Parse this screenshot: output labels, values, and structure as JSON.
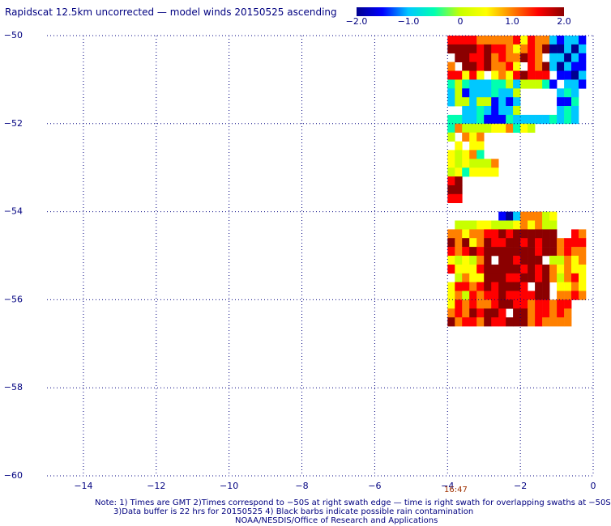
{
  "title": "Rapidscat 12.5km uncorrected — model winds 20150525 ascending",
  "colorbar": {
    "ticks": [
      "−2.0",
      "−1.0",
      "0",
      "1.0",
      "2.0"
    ],
    "tick_values": [
      -2.0,
      -1.0,
      0,
      1.0,
      2.0
    ],
    "range": [
      -2.0,
      2.0
    ],
    "colors": [
      "#00008f",
      "#0000ff",
      "#00c8ff",
      "#00ffb0",
      "#c8ff00",
      "#ffff00",
      "#ff8000",
      "#ff0000",
      "#8b0000"
    ]
  },
  "time_label": "16:47",
  "notes": {
    "line1": "Note: 1) Times are GMT 2)Times correspond to −50S at right swath edge — time is right swath for overlapping swaths at −50S",
    "line2": "3)Data buffer is 22 hrs for 20150525 4) Black barbs indicate possible rain contamination",
    "credit": "NOAA/NESDIS/Office of Research and Applications"
  },
  "chart_data": {
    "type": "heatmap",
    "title": "Rapidscat 12.5km uncorrected — model winds 20150525 ascending",
    "xlabel": "",
    "ylabel": "",
    "xlim": [
      -15,
      0
    ],
    "ylim": [
      -60,
      -50
    ],
    "x_ticks": [
      -14,
      -12,
      -10,
      -8,
      -6,
      -4,
      -2,
      0
    ],
    "x_tick_labels": [
      "−14",
      "−12",
      "−10",
      "−8",
      "−6",
      "−4",
      "−2",
      "0"
    ],
    "y_ticks": [
      -50,
      -52,
      -54,
      -56,
      -58,
      -60
    ],
    "y_tick_labels": [
      "−50",
      "−52",
      "−54",
      "−56",
      "−58",
      "−60"
    ],
    "grid": true,
    "grid_style": "dotted",
    "value_range": [
      -2.0,
      2.0
    ],
    "swath": {
      "lon_range": [
        -4,
        -0.2
      ],
      "lat_range": [
        -56.6,
        -50
      ]
    },
    "regions": [
      {
        "lon": [
          -3.9,
          -1.0
        ],
        "lat": [
          -51.0,
          -50.0
        ],
        "value": 1.2
      },
      {
        "lon": [
          -3.7,
          -2.8
        ],
        "lat": [
          -50.9,
          -50.2
        ],
        "value": 2.0
      },
      {
        "lon": [
          -1.2,
          -0.2
        ],
        "lat": [
          -51.2,
          -50.0
        ],
        "value": -1.6
      },
      {
        "lon": [
          -4.0,
          -0.4
        ],
        "lat": [
          -52.1,
          -51.0
        ],
        "value": -0.8
      },
      {
        "lon": [
          -4.0,
          -1.5
        ],
        "lat": [
          -53.3,
          -52.1
        ],
        "value": 0.3
      },
      {
        "lon": [
          -4.0,
          -3.5
        ],
        "lat": [
          -54.0,
          -53.2
        ],
        "value": 1.8
      },
      {
        "lon": [
          -3.8,
          -1.0
        ],
        "lat": [
          -54.5,
          -54.0
        ],
        "value": 0.6
      },
      {
        "lon": [
          -3.2,
          -2.0
        ],
        "lat": [
          -54.3,
          -54.0
        ],
        "value": -1.8
      },
      {
        "lon": [
          -4.0,
          -0.2
        ],
        "lat": [
          -55.0,
          -54.5
        ],
        "value": 1.3
      },
      {
        "lon": [
          -2.5,
          -1.0
        ],
        "lat": [
          -56.3,
          -54.5
        ],
        "value": 2.0
      },
      {
        "lon": [
          -3.3,
          -2.2
        ],
        "lat": [
          -56.1,
          -54.9
        ],
        "value": 2.0
      },
      {
        "lon": [
          -4.0,
          -3.0
        ],
        "lat": [
          -56.0,
          -55.0
        ],
        "value": 0.8
      },
      {
        "lon": [
          -1.2,
          -0.2
        ],
        "lat": [
          -56.0,
          -55.0
        ],
        "value": 0.7
      },
      {
        "lon": [
          -4.0,
          -0.6
        ],
        "lat": [
          -56.6,
          -56.0
        ],
        "value": 1.4
      },
      {
        "lon": [
          -2.7,
          -2.0
        ],
        "lat": [
          -56.6,
          -56.0
        ],
        "value": 2.0
      }
    ],
    "gaps": [
      {
        "lon": [
          -3.0,
          -1.3
        ],
        "lat": [
          -52.9,
          -52.3
        ]
      },
      {
        "lon": [
          -2.6,
          -0.2
        ],
        "lat": [
          -53.9,
          -52.9
        ]
      },
      {
        "lon": [
          -4.0,
          -2.6
        ],
        "lat": [
          -54.3,
          -53.9
        ]
      },
      {
        "lon": [
          -2.0,
          -0.9
        ],
        "lat": [
          -51.8,
          -51.2
        ]
      }
    ]
  }
}
